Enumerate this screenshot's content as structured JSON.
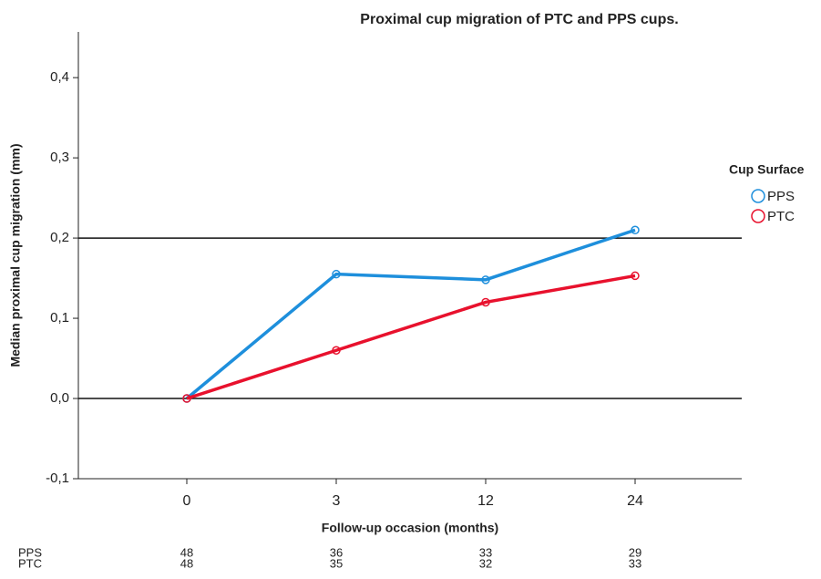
{
  "chart_data": {
    "type": "line",
    "title": "Proximal cup migration of PTC and PPS cups.",
    "x_label": "Follow-up occasion (months)",
    "y_label": "Median proximal cup migration (mm)",
    "categories": [
      "0",
      "3",
      "12",
      "24"
    ],
    "series": [
      {
        "name": "PPS",
        "color": "#1e8fdc",
        "values": [
          0,
          0.155,
          0.148,
          0.21
        ]
      },
      {
        "name": "PTC",
        "color": "#e8112d",
        "values": [
          0,
          0.06,
          0.12,
          0.153
        ]
      }
    ],
    "ylim": [
      -0.1,
      0.457
    ],
    "yticks": [
      {
        "value": -0.1,
        "label": "-0,1"
      },
      {
        "value": 0,
        "label": "0,0"
      },
      {
        "value": 0.1,
        "label": "0,1"
      },
      {
        "value": 0.2,
        "label": "0,2"
      },
      {
        "value": 0.3,
        "label": "0,3"
      },
      {
        "value": 0.4,
        "label": "0,4"
      }
    ],
    "reference_lines": [
      0,
      0.2
    ],
    "legend_title": "Cup Surface",
    "legend_position": "right",
    "risk_table": {
      "rows": [
        {
          "name": "PPS",
          "values": [
            48,
            36,
            33,
            29
          ]
        },
        {
          "name": "PTC",
          "values": [
            48,
            35,
            32,
            33
          ]
        }
      ]
    }
  }
}
